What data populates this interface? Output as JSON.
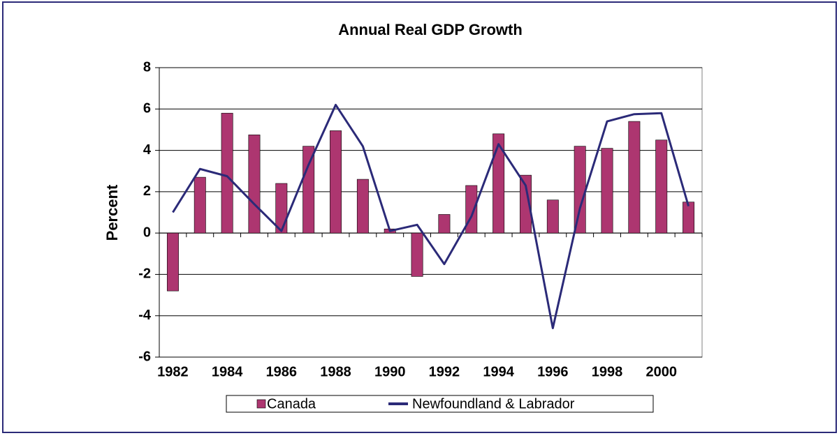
{
  "chart_data": {
    "type": "bar-line",
    "title": "Annual Real GDP Growth",
    "y_label": "Percent",
    "categories": [
      "1982",
      null,
      "1984",
      null,
      "1986",
      null,
      "1988",
      null,
      "1990",
      null,
      "1992",
      null,
      "1994",
      null,
      "1996",
      null,
      "1998",
      null,
      "2000",
      null
    ],
    "series": [
      {
        "name": "Canada",
        "type": "bar",
        "color": "#ad3670",
        "values": [
          -2.8,
          2.7,
          5.8,
          4.75,
          2.4,
          4.2,
          4.95,
          2.6,
          0.2,
          -2.1,
          0.9,
          2.3,
          4.8,
          2.8,
          1.6,
          4.2,
          4.1,
          5.4,
          4.5,
          1.5
        ]
      },
      {
        "name": "Newfoundland & Labrador",
        "type": "line",
        "color": "#2b2a78",
        "values": [
          1.0,
          3.1,
          2.75,
          1.4,
          0.1,
          3.3,
          6.2,
          4.2,
          0.1,
          0.4,
          -1.5,
          0.8,
          4.3,
          2.3,
          -4.6,
          1.2,
          5.4,
          5.75,
          5.8,
          1.3
        ]
      }
    ],
    "ylim": [
      -6,
      8
    ],
    "yticks": [
      -6,
      -4,
      -2,
      0,
      2,
      4,
      6,
      8
    ],
    "grid": true,
    "legend": "bottom"
  }
}
